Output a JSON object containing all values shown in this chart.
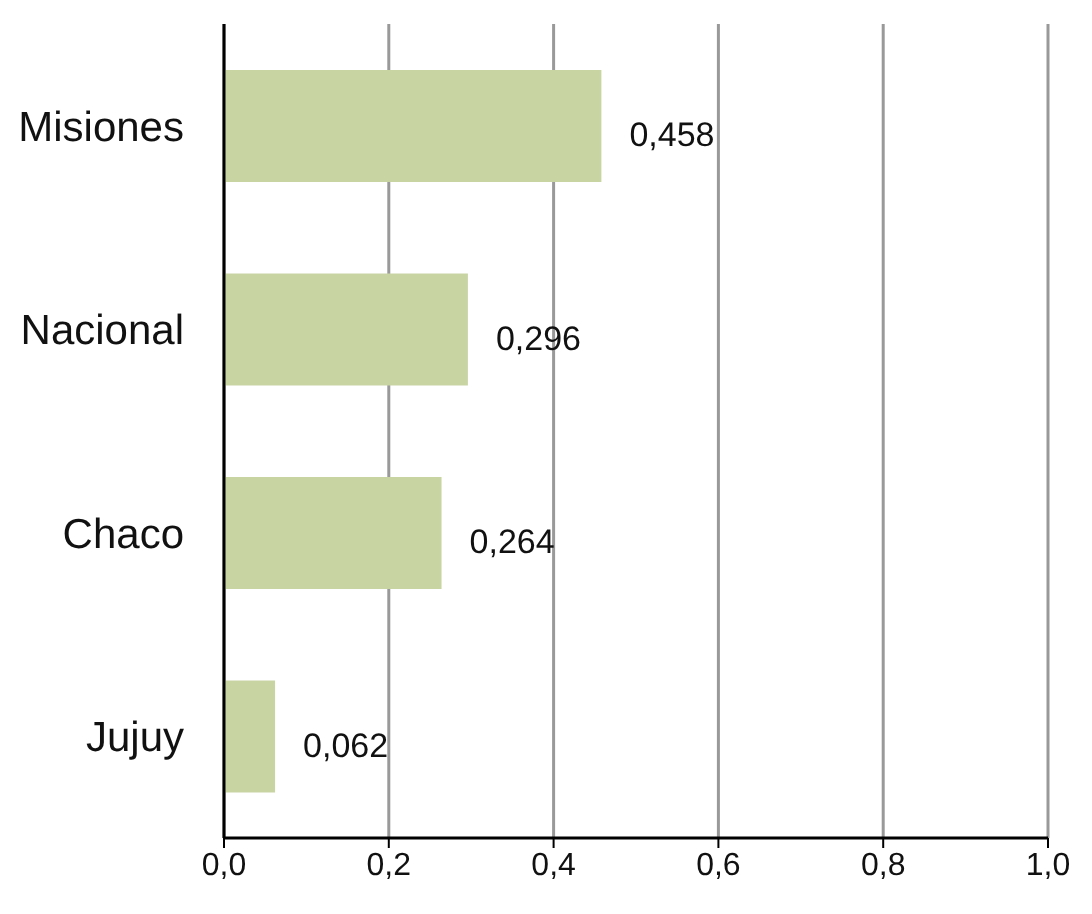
{
  "chart_data": {
    "type": "bar",
    "orientation": "horizontal",
    "categories": [
      "Misiones",
      "Nacional",
      "Chaco",
      "Jujuy"
    ],
    "values": [
      0.458,
      0.296,
      0.264,
      0.062
    ],
    "value_labels": [
      "0,458",
      "0,296",
      "0,264",
      "0,062"
    ],
    "color": "#c8d5a3",
    "xlim": [
      0,
      1
    ],
    "xticks": [
      {
        "value": 0,
        "label": "0,0"
      },
      {
        "value": 0.2,
        "label": "0,2"
      },
      {
        "value": 0.4,
        "label": "0,4"
      },
      {
        "value": 0.6,
        "label": "0,6"
      },
      {
        "value": 0.8,
        "label": "0,8"
      },
      {
        "value": 1,
        "label": "1,0"
      }
    ],
    "grid": "x"
  }
}
